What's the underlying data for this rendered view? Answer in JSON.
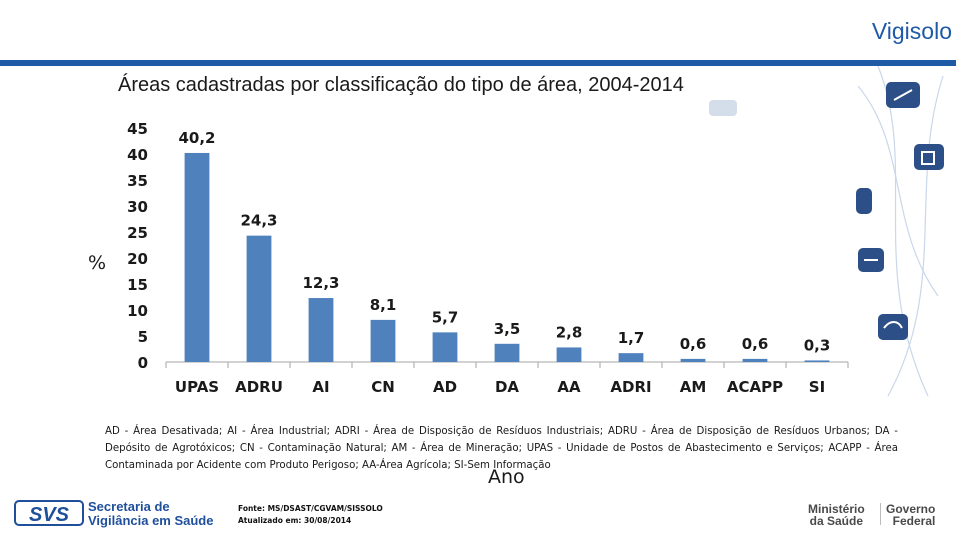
{
  "header": {
    "title": "Vigisolo",
    "accent_color": "#1f5aa6"
  },
  "chart_data": {
    "type": "bar",
    "title": "Áreas cadastradas por classificação do tipo de área, 2004-2014",
    "ylabel": "%",
    "xlabel": "Ano",
    "categories": [
      "UPAS",
      "ADRU",
      "AI",
      "CN",
      "AD",
      "DA",
      "AA",
      "ADRI",
      "AM",
      "ACAPP",
      "SI"
    ],
    "values": [
      40.2,
      24.3,
      12.3,
      8.1,
      5.7,
      3.5,
      2.8,
      1.7,
      0.6,
      0.6,
      0.3
    ],
    "data_labels": [
      "40,2",
      "24,3",
      "12,3",
      "8,1",
      "5,7",
      "3,5",
      "2,8",
      "1,7",
      "0,6",
      "0,6",
      "0,3"
    ],
    "yticks": [
      "0",
      "5",
      "10",
      "15",
      "20",
      "25",
      "30",
      "35",
      "40",
      "45"
    ],
    "ylim": [
      0,
      45
    ],
    "grid": false,
    "bar_color": "#4f81bd"
  },
  "legend_note": "AD - Área Desativada; AI - Área Industrial; ADRI - Área de Disposição de Resíduos Industriais; ADRU - Área de Disposição de Resíduos Urbanos; DA - Depósito de Agrotóxicos; CN - Contaminação Natural; AM - Área de Mineração; UPAS - Unidade de Postos de Abastecimento e Serviços; ACAPP - Área Contaminada por Acidente com Produto Perigoso; AA-Área Agrícola; SI-Sem Informação",
  "footer": {
    "logo_text": "SVS",
    "secretaria_line1": "Secretaria de",
    "secretaria_line2": "Vigilância em Saúde",
    "fonte": "Fonte: MS/DSAST/CGVAM/SISSOLO",
    "atualizado": "Atualizado em: 30/08/2014",
    "ministerio_line1": "Ministério",
    "ministerio_line2": "da Saúde",
    "governo_line1": "Governo",
    "governo_line2": "Federal"
  }
}
